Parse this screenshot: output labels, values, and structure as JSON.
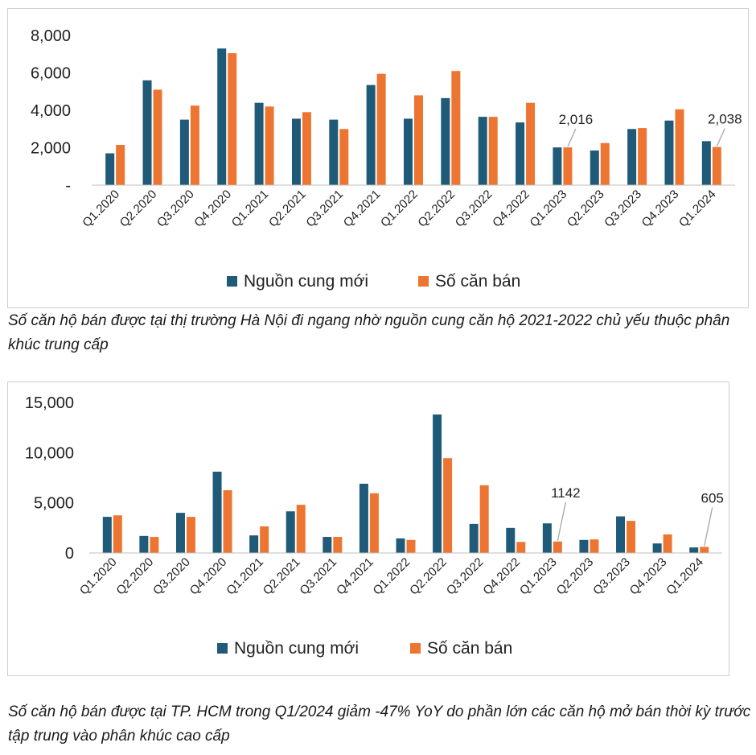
{
  "chart_data": [
    {
      "type": "bar",
      "title": "",
      "categories": [
        "Q1.2020",
        "Q2.2020",
        "Q3.2020",
        "Q4.2020",
        "Q1.2021",
        "Q2.2021",
        "Q3.2021",
        "Q4.2021",
        "Q1.2022",
        "Q2.2022",
        "Q3.2022",
        "Q4.2022",
        "Q1.2023",
        "Q2.2023",
        "Q3.2023",
        "Q4.2023",
        "Q1.2024"
      ],
      "series": [
        {
          "name": "Nguồn cung mới",
          "color": "#1f5a78",
          "values": [
            1700,
            5600,
            3500,
            7300,
            4400,
            3550,
            3500,
            5350,
            3550,
            4650,
            3650,
            3350,
            2016,
            1850,
            3000,
            3450,
            2350
          ]
        },
        {
          "name": "Số căn bán",
          "color": "#ed7532",
          "values": [
            2150,
            5100,
            4250,
            7050,
            4200,
            3900,
            3000,
            5950,
            4800,
            6100,
            3650,
            4400,
            2016,
            2250,
            3050,
            4050,
            2038
          ]
        }
      ],
      "yticks": [
        "-",
        "2,000",
        "4,000",
        "6,000",
        "8,000"
      ],
      "ylim": [
        0,
        8000
      ],
      "ytick_values": [
        0,
        2000,
        4000,
        6000,
        8000
      ],
      "annotations": [
        {
          "category": "Q1.2023",
          "series": "Số căn bán",
          "label": "2,016"
        },
        {
          "category": "Q1.2024",
          "series": "Số căn bán",
          "label": "2,038"
        }
      ],
      "legend": "bottom-center"
    },
    {
      "type": "bar",
      "title": "",
      "categories": [
        "Q1.2020",
        "Q2.2020",
        "Q3.2020",
        "Q4.2020",
        "Q1.2021",
        "Q2.2021",
        "Q3.2021",
        "Q4.2021",
        "Q1.2022",
        "Q2.2022",
        "Q3.2022",
        "Q4.2022",
        "Q1.2023",
        "Q2.2023",
        "Q3.2023",
        "Q4.2023",
        "Q1.2024"
      ],
      "series": [
        {
          "name": "Nguồn cung mới",
          "color": "#1f5a78",
          "values": [
            3600,
            1700,
            4000,
            8100,
            1750,
            4150,
            1600,
            6900,
            1450,
            13800,
            2900,
            2500,
            2950,
            1300,
            3650,
            950,
            550
          ]
        },
        {
          "name": "Số căn bán",
          "color": "#ed7532",
          "values": [
            3750,
            1600,
            3600,
            6250,
            2650,
            4800,
            1600,
            5950,
            1300,
            9450,
            6750,
            1100,
            1142,
            1350,
            3200,
            1850,
            605
          ]
        }
      ],
      "yticks": [
        "0",
        "5,000",
        "10,000",
        "15,000"
      ],
      "ylim": [
        0,
        15000
      ],
      "ytick_values": [
        0,
        5000,
        10000,
        15000
      ],
      "annotations": [
        {
          "category": "Q1.2023",
          "series": "Số căn bán",
          "label": "1142"
        },
        {
          "category": "Q1.2024",
          "series": "Số căn bán",
          "label": "605"
        }
      ],
      "legend": "bottom-center"
    }
  ],
  "captions": {
    "hanoi": "Số căn hộ bán được tại thị trường Hà Nội đi ngang nhờ nguồn cung căn hộ 2021-2022 chủ yếu thuộc phân khúc trung cấp",
    "hcm": "Số căn hộ bán được tại TP. HCM trong Q1/2024 giảm -47% YoY do phần lớn các căn hộ mở bán thời kỳ trước tập trung vào phân khúc cao cấp"
  }
}
